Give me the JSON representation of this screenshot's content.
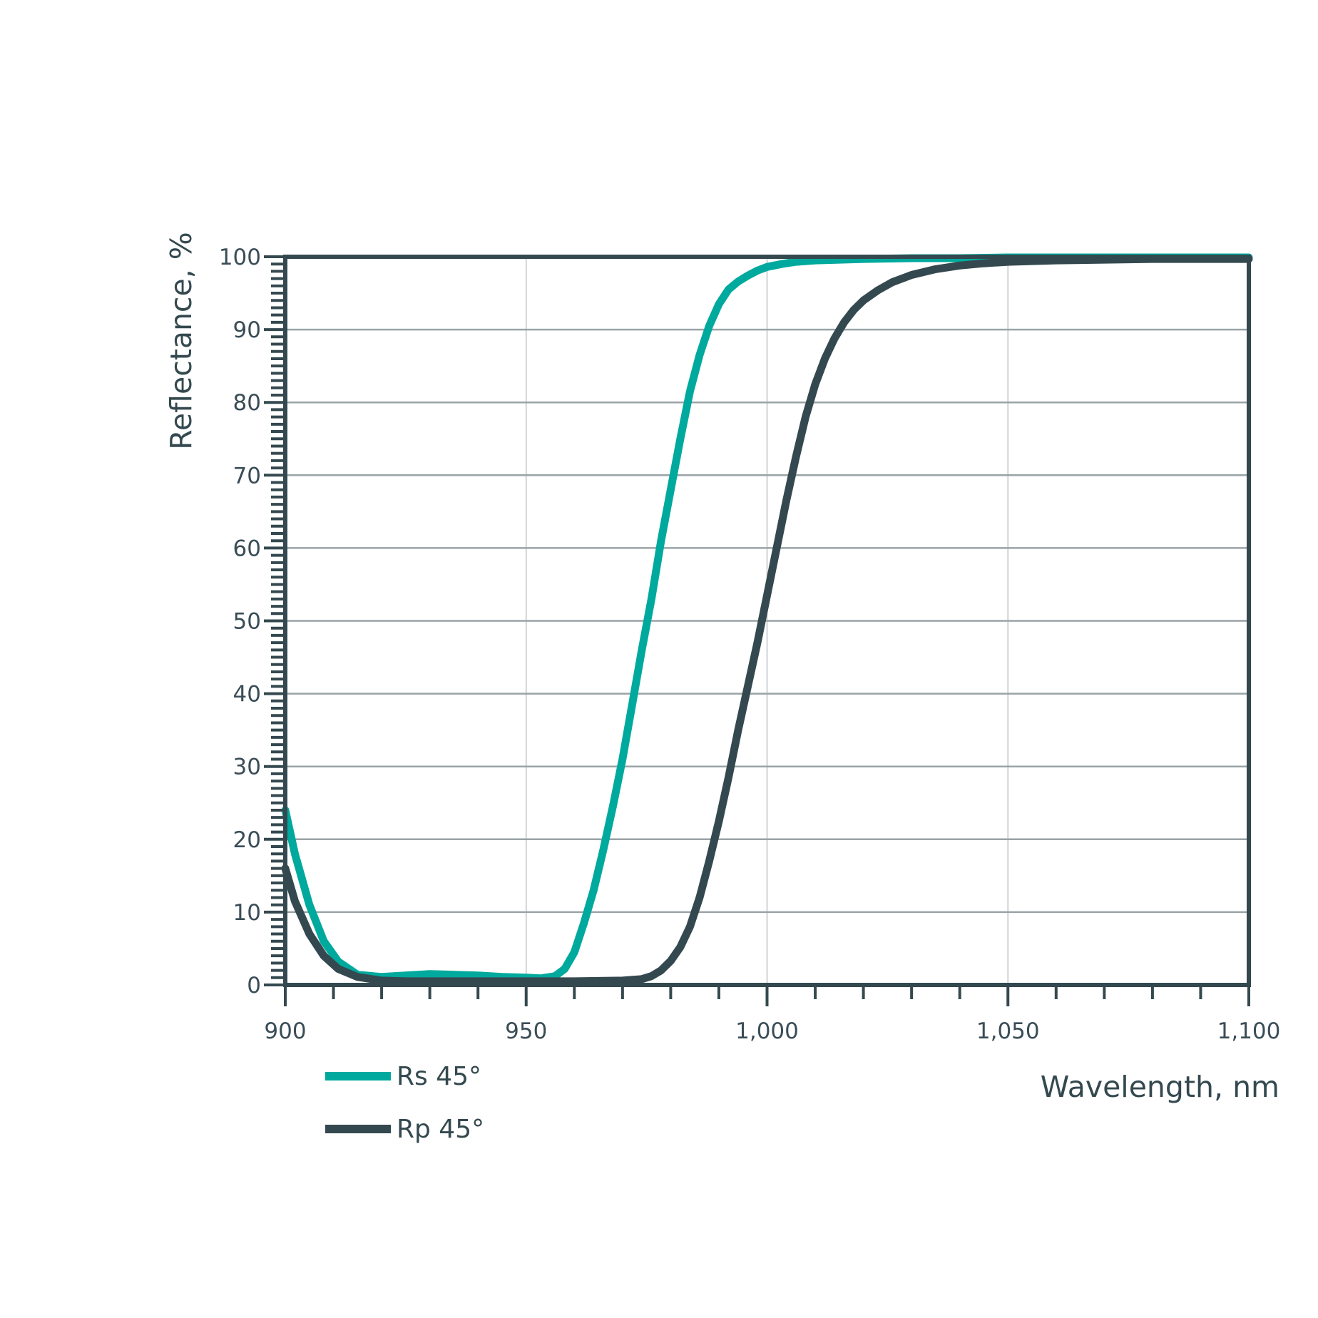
{
  "chart_data": {
    "type": "line",
    "title": "",
    "xlabel": "Wavelength, nm",
    "ylabel": "Reflectance, %",
    "xlim": [
      900,
      1100
    ],
    "ylim": [
      0,
      100
    ],
    "x_ticks": [
      900,
      950,
      1000,
      1050,
      1100
    ],
    "x_tick_labels": [
      "900",
      "950",
      "1,000",
      "1,050",
      "1,100"
    ],
    "y_ticks": [
      0,
      10,
      20,
      30,
      40,
      50,
      60,
      70,
      80,
      90,
      100
    ],
    "y_tick_labels": [
      "0",
      "10",
      "20",
      "30",
      "40",
      "50",
      "60",
      "70",
      "80",
      "90",
      "100"
    ],
    "grid": true,
    "legend_position": "bottom-left",
    "series": [
      {
        "name": "Rs 45°",
        "color": "#00a99d",
        "x": [
          900,
          902,
          905,
          908,
          911,
          915,
          920,
          925,
          930,
          935,
          940,
          945,
          950,
          953,
          956,
          958,
          960,
          962,
          964,
          966,
          968,
          970,
          972,
          974,
          976,
          978,
          980,
          982,
          984,
          986,
          988,
          990,
          992,
          994,
          996,
          998,
          1000,
          1003,
          1006,
          1010,
          1015,
          1020,
          1030,
          1040,
          1050,
          1060,
          1070,
          1080,
          1090,
          1100
        ],
        "y": [
          24,
          18,
          11,
          6,
          3.2,
          1.4,
          1.1,
          1.3,
          1.5,
          1.4,
          1.3,
          1.1,
          1.0,
          0.9,
          1.2,
          2.2,
          4.5,
          8.5,
          13,
          18.5,
          24.5,
          31,
          38.5,
          46,
          53,
          61,
          68,
          75,
          81.5,
          86.5,
          90.5,
          93.5,
          95.5,
          96.6,
          97.4,
          98.1,
          98.6,
          99.0,
          99.3,
          99.5,
          99.6,
          99.7,
          99.8,
          99.8,
          99.9,
          99.9,
          99.9,
          99.9,
          99.9,
          99.9
        ]
      },
      {
        "name": "Rp 45°",
        "color": "#34494f",
        "x": [
          900,
          902,
          905,
          908,
          911,
          915,
          920,
          925,
          930,
          940,
          950,
          960,
          970,
          974,
          976,
          978,
          980,
          982,
          984,
          986,
          988,
          990,
          992,
          994,
          996,
          998,
          1000,
          1002,
          1004,
          1006,
          1008,
          1010,
          1012,
          1014,
          1016,
          1018,
          1020,
          1023,
          1026,
          1030,
          1035,
          1040,
          1045,
          1050,
          1060,
          1070,
          1080,
          1090,
          1100
        ],
        "y": [
          16,
          11.5,
          7,
          4,
          2.2,
          1.1,
          0.6,
          0.5,
          0.5,
          0.5,
          0.5,
          0.5,
          0.6,
          0.8,
          1.2,
          2.0,
          3.3,
          5.2,
          8,
          12,
          17,
          22.5,
          28.5,
          35,
          41,
          47,
          53.5,
          60,
          66.5,
          72.5,
          78,
          82.5,
          86,
          88.8,
          91,
          92.7,
          94,
          95.4,
          96.5,
          97.5,
          98.3,
          98.8,
          99.1,
          99.3,
          99.5,
          99.6,
          99.7,
          99.7,
          99.7
        ]
      }
    ]
  },
  "legend": {
    "items": [
      {
        "label": "Rs 45°",
        "color": "#00a99d"
      },
      {
        "label": "Rp 45°",
        "color": "#34494f"
      }
    ]
  },
  "colors": {
    "axis": "#34494f",
    "grid_major": "#9aa3a6",
    "grid_minor": "#bfc5c7",
    "label": "#3a4d57"
  }
}
